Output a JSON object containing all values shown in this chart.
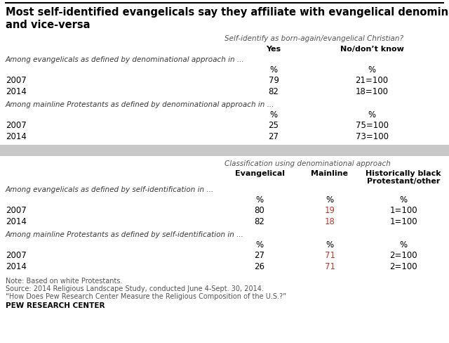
{
  "title_line1": "Most self-identified evangelicals say they affiliate with evangelical denominations,",
  "title_line2": "and vice-versa",
  "section1_header": "Self-identify as born-again/evangelical Christian?",
  "section1_col1": "Yes",
  "section1_col2": "No/don’t know",
  "section1_group1_label": "Among evangelicals as defined by denominational approach in ...",
  "section1_group2_label": "Among mainline Protestants as defined by denominational approach in ...",
  "section2_header": "Classification using denominational approach",
  "section2_col1": "Evangelical",
  "section2_col2": "Mainline",
  "section2_col3_line1": "Historically black",
  "section2_col3_line2": "Protestant/other",
  "section2_group1_label": "Among evangelicals as defined by self-identification in ...",
  "section2_group2_label": "Among mainline Protestants as defined by self-identification in ...",
  "note_lines": [
    "Note: Based on white Protestants.",
    "Source: 2014 Religious Landscape Study, conducted June 4-Sept. 30, 2014.",
    "“How Does Pew Research Center Measure the Religious Composition of the U.S.?”"
  ],
  "source_label": "PEW RESEARCH CENTER",
  "bg_color": "#ffffff",
  "gray_bar_color": "#c8c8c8",
  "title_color": "#000000",
  "header_italic_color": "#555555",
  "col_bold_color": "#000000",
  "italic_label_color": "#3a3a3a",
  "data_color": "#000000",
  "mainline_data_color": "#c0392b",
  "note_color": "#555555"
}
